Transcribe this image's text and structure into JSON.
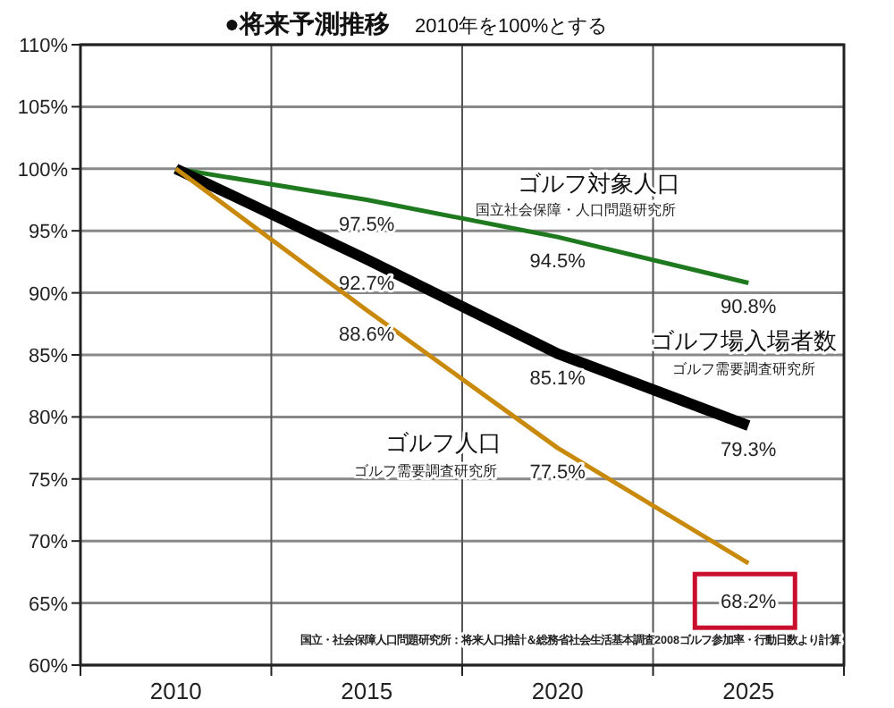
{
  "chart_data": {
    "type": "line",
    "title": "●将来予測推移",
    "subtitle": "2010年を100%とする",
    "categories": [
      "2010",
      "2015",
      "2020",
      "2025"
    ],
    "series": [
      {
        "name": "ゴルフ対象人口",
        "color": "#1f7a1f",
        "values": [
          100,
          97.5,
          94.5,
          90.8
        ],
        "value_labels": [
          null,
          "97.5%",
          "94.5%",
          "90.8%"
        ]
      },
      {
        "name": "ゴルフ場入場者数",
        "color": "#000000",
        "values": [
          100,
          92.7,
          85.1,
          79.3
        ],
        "value_labels": [
          null,
          "92.7%",
          "85.1%",
          "79.3%"
        ]
      },
      {
        "name": "ゴルフ人口",
        "color": "#c98a0c",
        "values": [
          100,
          88.6,
          77.5,
          68.2
        ],
        "value_labels": [
          null,
          "88.6%",
          "77.5%",
          null
        ]
      }
    ],
    "annotations": [
      "国立社会保障・人口問題研究所",
      "ゴルフ需要調査研究所",
      "ゴルフ需要調査研究所",
      {
        "text": "68.2%",
        "x": "2025",
        "y": 68.2
      },
      "国立・社会保障人口問題研究所：将来人口推計＆総務省社会生活基本調査2008ゴルフ参加率・行動日数より計算"
    ],
    "ylim": [
      60,
      110
    ],
    "yticks": [
      {
        "value": 60,
        "label": "60%"
      },
      {
        "value": 65,
        "label": "65%"
      },
      {
        "value": 70,
        "label": "70%"
      },
      {
        "value": 75,
        "label": "75%"
      },
      {
        "value": 80,
        "label": "80%"
      },
      {
        "value": 85,
        "label": "85%"
      },
      {
        "value": 90,
        "label": "90%"
      },
      {
        "value": 95,
        "label": "95%"
      },
      {
        "value": 100,
        "label": "100%"
      },
      {
        "value": 105,
        "label": "105%"
      },
      {
        "value": 110,
        "label": "110%"
      }
    ],
    "grid": true,
    "marker": "none",
    "line_style": "solid"
  }
}
